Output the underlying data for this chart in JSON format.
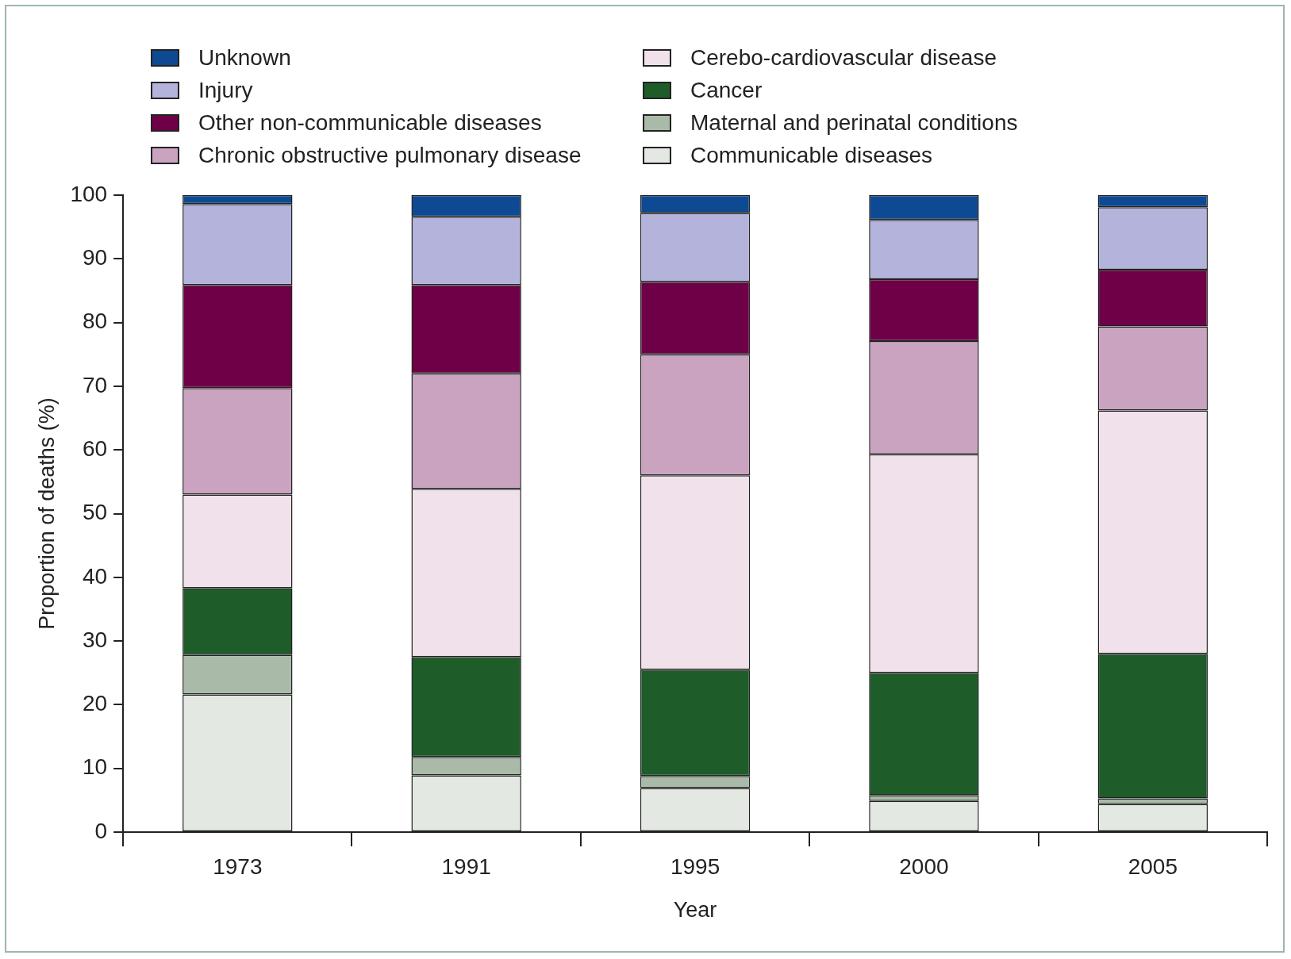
{
  "chart_data": {
    "type": "bar",
    "stacked": true,
    "xlabel": "Year",
    "ylabel": "Proportion of deaths (%)",
    "categories": [
      "1973",
      "1991",
      "1995",
      "2000",
      "2005"
    ],
    "ylim": [
      0,
      100
    ],
    "yticks": [
      0,
      10,
      20,
      30,
      40,
      50,
      60,
      70,
      80,
      90,
      100
    ],
    "grid": false,
    "legend": "top",
    "series": [
      {
        "name": "Communicable diseases",
        "color": "#e3e8e3",
        "values": [
          21.6,
          8.9,
          6.9,
          4.9,
          4.4
        ]
      },
      {
        "name": "Maternal and perinatal conditions",
        "color": "#a9bba8",
        "values": [
          6.2,
          2.9,
          1.9,
          0.9,
          0.9
        ]
      },
      {
        "name": "Cancer",
        "color": "#1e5c2a",
        "values": [
          10.5,
          15.7,
          16.7,
          19.2,
          22.7
        ]
      },
      {
        "name": "Cerebo-cardiovascular disease",
        "color": "#f0e1ea",
        "values": [
          14.7,
          26.4,
          30.5,
          34.3,
          38.2
        ]
      },
      {
        "name": "Chronic obstructive pulmonary disease",
        "color": "#c9a3c0",
        "values": [
          16.7,
          18.1,
          19.0,
          17.8,
          13.2
        ]
      },
      {
        "name": "Other non-communicable diseases",
        "color": "#6e0048",
        "values": [
          16.2,
          13.9,
          11.4,
          9.7,
          8.9
        ]
      },
      {
        "name": "Injury",
        "color": "#b3b3dc",
        "values": [
          12.7,
          10.7,
          10.8,
          9.3,
          9.8
        ]
      },
      {
        "name": "Unknown",
        "color": "#0d4a93",
        "values": [
          1.4,
          3.4,
          2.8,
          3.9,
          1.9
        ]
      }
    ]
  }
}
